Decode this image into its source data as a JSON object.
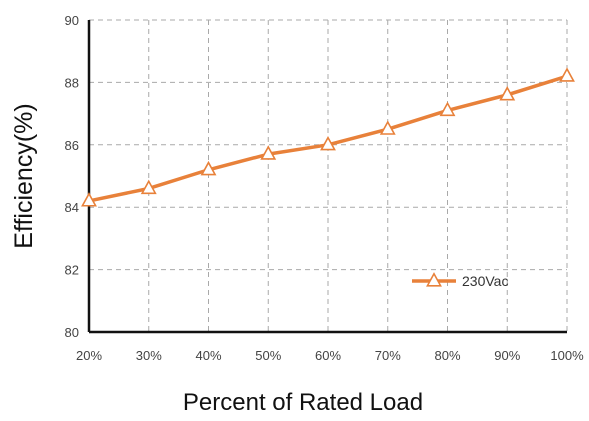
{
  "chart_data": {
    "type": "line",
    "categories": [
      "20%",
      "30%",
      "40%",
      "50%",
      "60%",
      "70%",
      "80%",
      "90%",
      "100%"
    ],
    "series": [
      {
        "name": "230Vac",
        "values": [
          84.2,
          84.6,
          85.2,
          85.7,
          86.0,
          86.5,
          87.1,
          87.6,
          88.2
        ],
        "color": "#e8813a",
        "marker": "triangle"
      }
    ],
    "title": "",
    "xlabel": "Percent of Rated Load",
    "ylabel": "Efficiency(%)",
    "ylim": [
      80,
      90
    ],
    "yticks": [
      "80",
      "82",
      "84",
      "86",
      "88",
      "90"
    ],
    "grid": true,
    "grid_style": "dashed",
    "legend_position": "lower-right"
  }
}
